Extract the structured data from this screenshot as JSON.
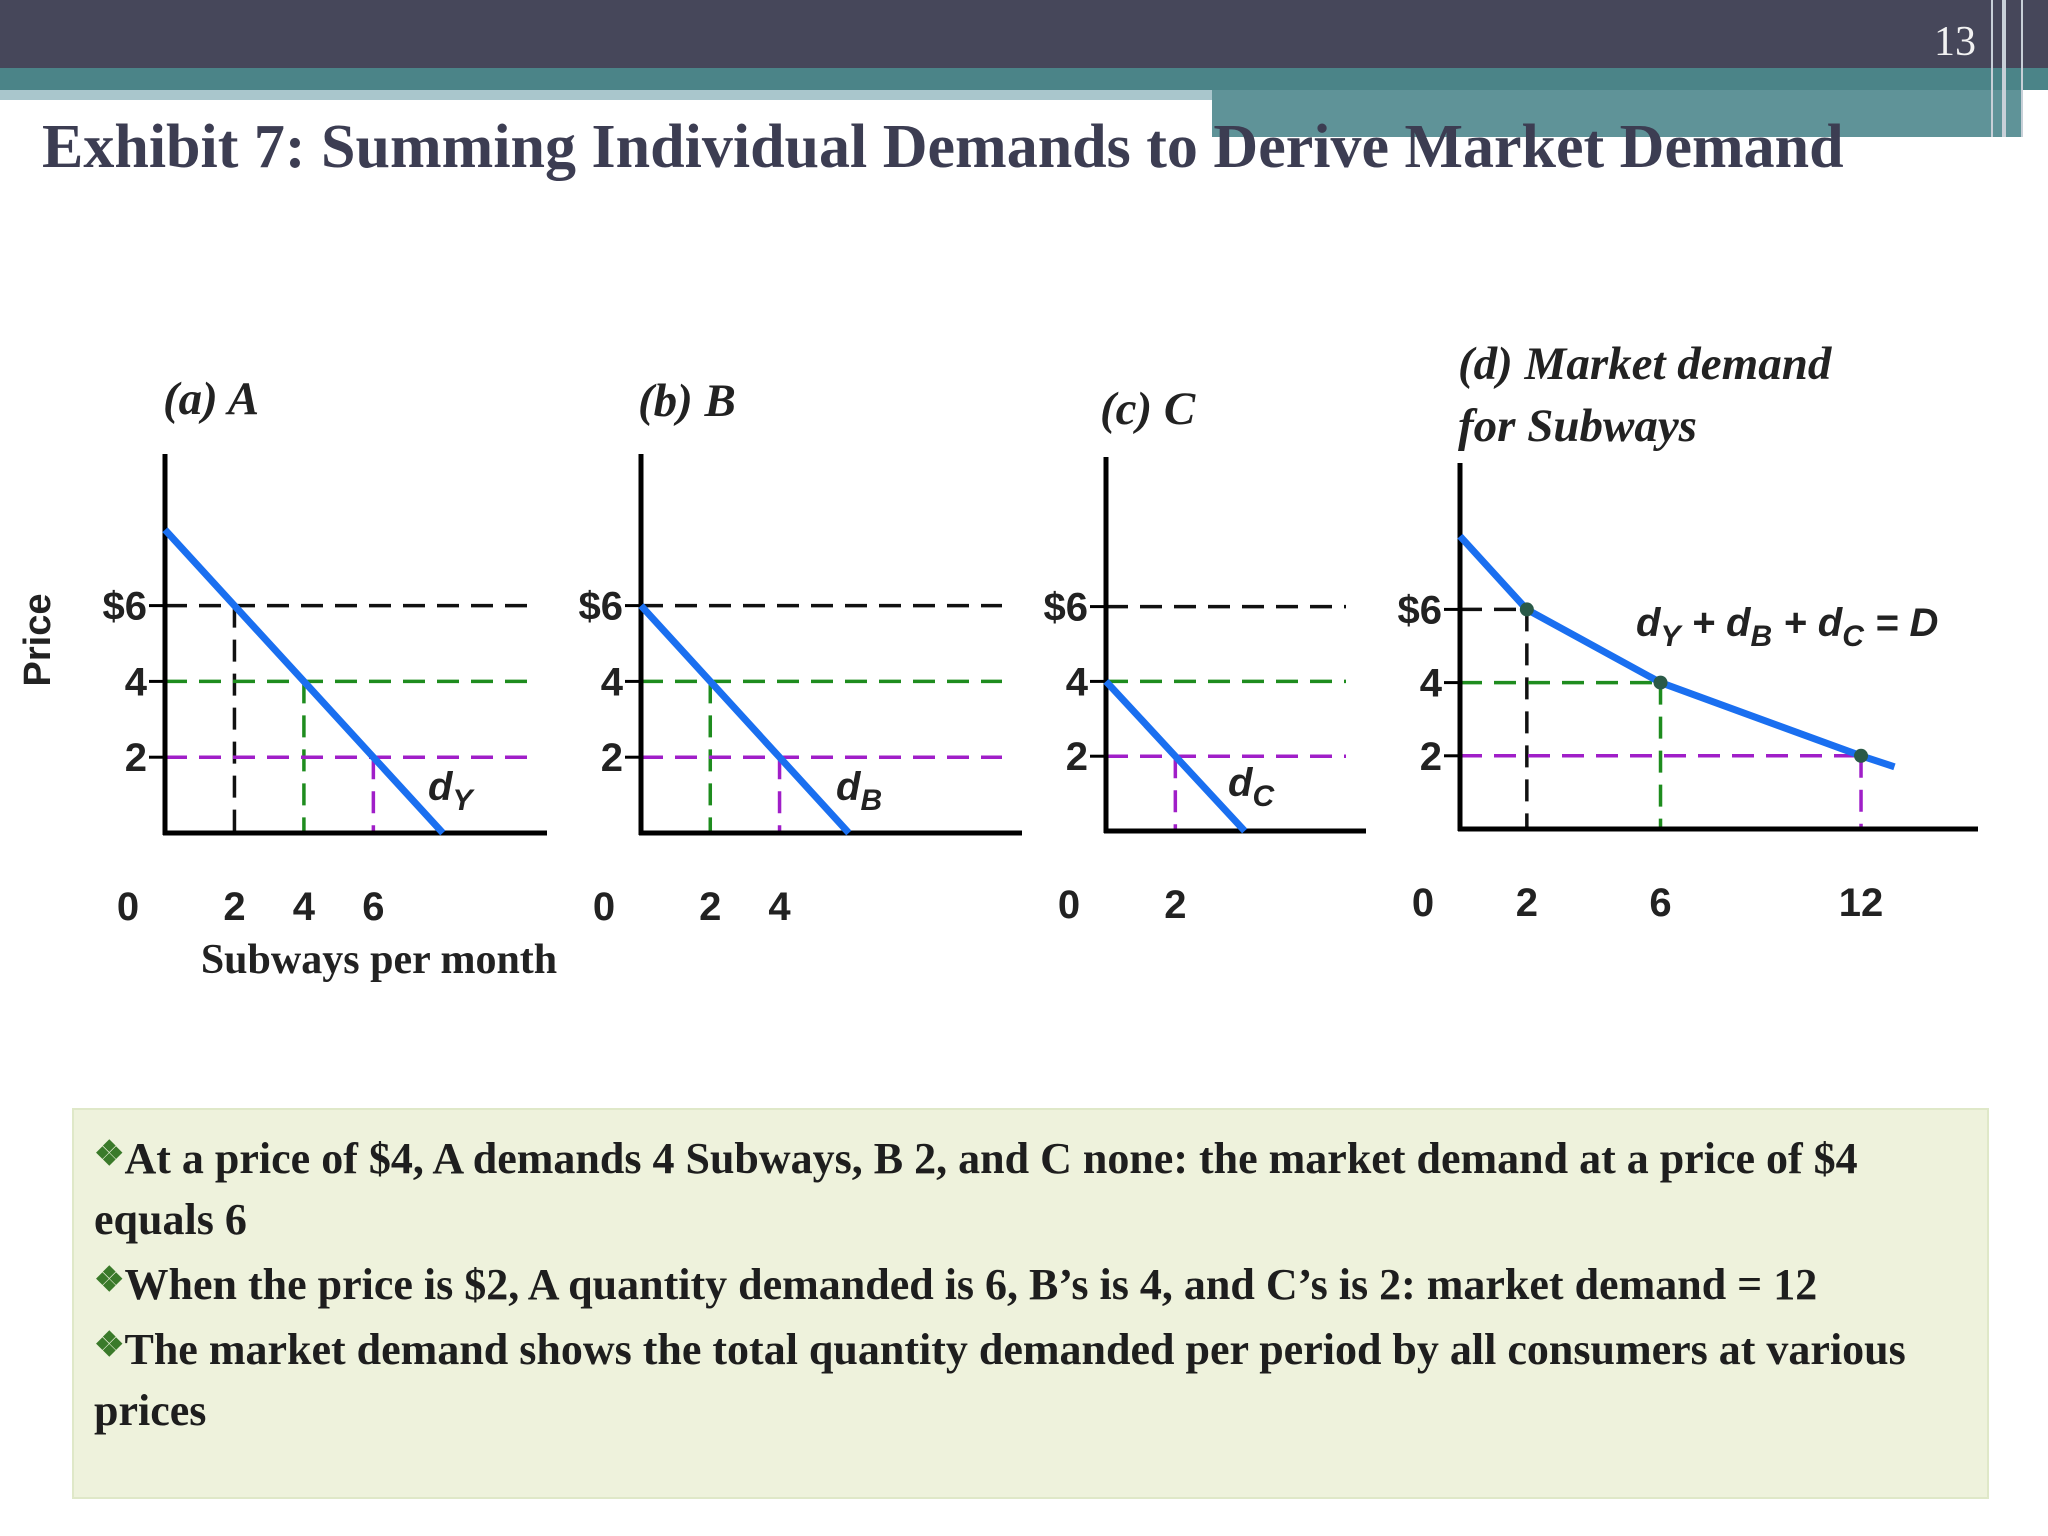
{
  "slide_number": "13",
  "title": "Exhibit 7: Summing Individual Demands to Derive Market Demand",
  "bullets": [
    "At a price of $4, A demands 4 Subways, B 2, and C none: the market demand at a price of $4 equals 6",
    "When the price is $2, A quantity demanded is 6, B’s is 4, and C’s is 2:  market demand = 12",
    "The market demand shows the total quantity demanded per period by all consumers at various prices"
  ],
  "chart_data": [
    {
      "type": "line",
      "title": "(a) A",
      "x_label": "Subways per month",
      "y_label": "Price",
      "xlim": [
        0,
        11
      ],
      "ylim": [
        0,
        10
      ],
      "xticks": [
        0,
        2,
        4,
        6
      ],
      "yticks": [
        2,
        4,
        {
          "value": 6,
          "label": "$6"
        }
      ],
      "x": [
        0,
        2,
        4,
        6,
        8
      ],
      "series": [
        {
          "name": "dY",
          "color": "#1a6ff0",
          "values": [
            8,
            6,
            4,
            2,
            0
          ]
        }
      ],
      "reference_lines": [
        {
          "value": 6,
          "color": "#111111"
        },
        {
          "value": 4,
          "color": "#1e8c1e"
        },
        {
          "value": 2,
          "color": "#a01ec8"
        }
      ],
      "reference_extent": "full"
    },
    {
      "type": "line",
      "title": "(b) B",
      "xlim": [
        0,
        11
      ],
      "ylim": [
        0,
        10
      ],
      "xticks": [
        0,
        2,
        4
      ],
      "yticks": [
        2,
        4,
        {
          "value": 6,
          "label": "$6"
        }
      ],
      "x": [
        0,
        2,
        4,
        6
      ],
      "series": [
        {
          "name": "dB",
          "color": "#1a6ff0",
          "values": [
            6,
            4,
            2,
            0
          ]
        }
      ],
      "reference_lines": [
        {
          "value": 6,
          "color": "#111111"
        },
        {
          "value": 4,
          "color": "#1e8c1e"
        },
        {
          "value": 2,
          "color": "#a01ec8"
        }
      ],
      "reference_extent": "full"
    },
    {
      "type": "line",
      "title": "(c) C",
      "xlim": [
        0,
        7.5
      ],
      "ylim": [
        0,
        10
      ],
      "xticks": [
        0,
        2
      ],
      "yticks": [
        2,
        4,
        {
          "value": 6,
          "label": "$6"
        }
      ],
      "x": [
        0,
        2,
        4
      ],
      "series": [
        {
          "name": "dC",
          "color": "#1a6ff0",
          "values": [
            4,
            2,
            0
          ]
        }
      ],
      "reference_lines": [
        {
          "value": 6,
          "color": "#111111"
        },
        {
          "value": 4,
          "color": "#1e8c1e"
        },
        {
          "value": 2,
          "color": "#a01ec8"
        }
      ],
      "reference_extent": "full"
    },
    {
      "type": "line",
      "title": "(d) Market demand for Subways",
      "xlim": [
        0,
        15.5
      ],
      "ylim": [
        0,
        10
      ],
      "xticks": [
        0,
        2,
        6,
        12
      ],
      "yticks": [
        2,
        4,
        {
          "value": 6,
          "label": "$6"
        }
      ],
      "x": [
        0,
        2,
        6,
        12,
        13
      ],
      "series": [
        {
          "name": "dY + dB + dC = D",
          "color": "#1a6ff0",
          "values": [
            8,
            6,
            4,
            2,
            1.7
          ]
        }
      ],
      "reference_lines": [
        {
          "value": 6,
          "color": "#111111"
        },
        {
          "value": 4,
          "color": "#1e8c1e"
        },
        {
          "value": 2,
          "color": "#a01ec8"
        }
      ],
      "reference_extent": "curve",
      "markers": true,
      "marker_color": "#2a5a48"
    }
  ]
}
